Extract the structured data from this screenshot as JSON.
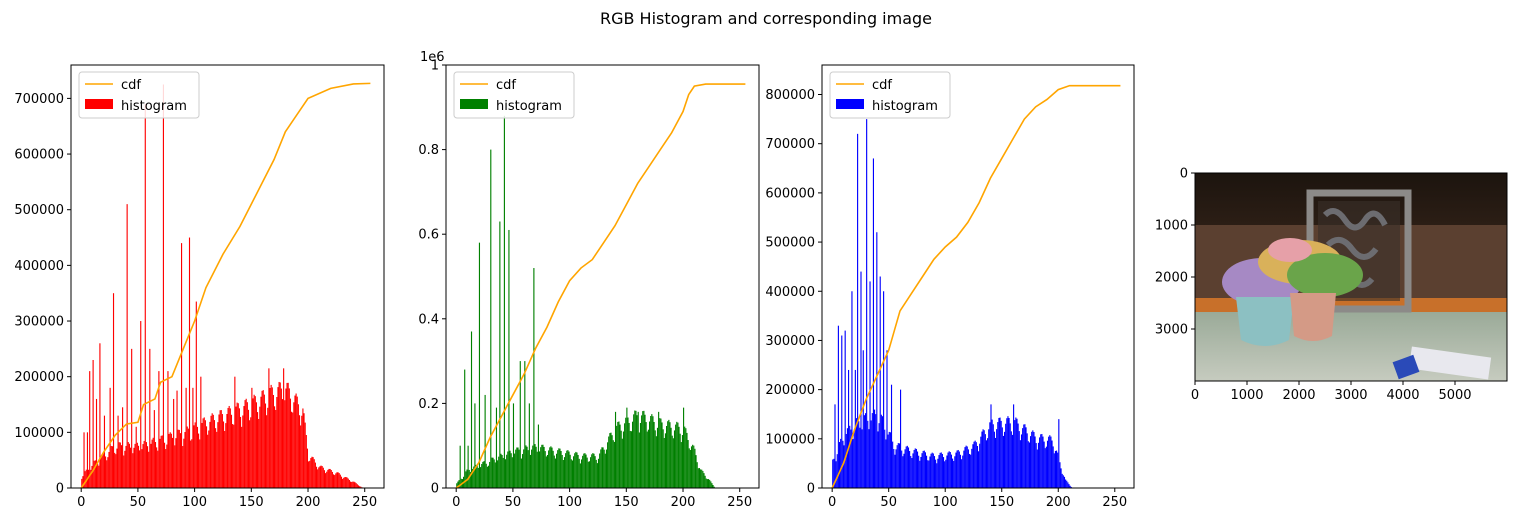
{
  "figure": {
    "suptitle": "RGB Histogram and corresponding image"
  },
  "chart_data": [
    {
      "type": "bar",
      "channel": "red",
      "color": "#ff0000",
      "cdf_color": "#ffa500",
      "legend": [
        "cdf",
        "histogram"
      ],
      "legend_position": "upper-left",
      "xlim": [
        -9,
        267
      ],
      "ylim": [
        0,
        760000
      ],
      "xticks": [
        0,
        50,
        100,
        150,
        200,
        250
      ],
      "yticks": [
        0,
        100000,
        200000,
        300000,
        400000,
        500000,
        600000,
        700000
      ],
      "y_offset_label": "",
      "hist_profile": [
        [
          0,
          20000
        ],
        [
          10,
          40000
        ],
        [
          30,
          70000
        ],
        [
          50,
          70000
        ],
        [
          70,
          80000
        ],
        [
          95,
          95000
        ],
        [
          110,
          110000
        ],
        [
          130,
          125000
        ],
        [
          150,
          140000
        ],
        [
          170,
          160000
        ],
        [
          180,
          165000
        ],
        [
          195,
          130000
        ],
        [
          200,
          55000
        ],
        [
          210,
          35000
        ],
        [
          225,
          25000
        ],
        [
          240,
          10000
        ],
        [
          248,
          0
        ],
        [
          255,
          0
        ]
      ],
      "hist_spikes": [
        [
          2,
          100000
        ],
        [
          5,
          100000
        ],
        [
          7,
          210000
        ],
        [
          10,
          230000
        ],
        [
          13,
          160000
        ],
        [
          16,
          260000
        ],
        [
          20,
          130000
        ],
        [
          25,
          180000
        ],
        [
          28,
          350000
        ],
        [
          32,
          130000
        ],
        [
          36,
          145000
        ],
        [
          40,
          510000
        ],
        [
          44,
          250000
        ],
        [
          48,
          110000
        ],
        [
          52,
          300000
        ],
        [
          56,
          690000
        ],
        [
          60,
          250000
        ],
        [
          64,
          140000
        ],
        [
          68,
          210000
        ],
        [
          72,
          725000
        ],
        [
          76,
          210000
        ],
        [
          81,
          160000
        ],
        [
          84,
          175000
        ],
        [
          88,
          440000
        ],
        [
          92,
          180000
        ],
        [
          95,
          450000
        ],
        [
          98,
          180000
        ],
        [
          101,
          335000
        ],
        [
          105,
          200000
        ],
        [
          135,
          200000
        ],
        [
          150,
          180000
        ],
        [
          165,
          215000
        ],
        [
          178,
          215000
        ]
      ],
      "cdf": [
        [
          0,
          0
        ],
        [
          10,
          30000
        ],
        [
          20,
          65000
        ],
        [
          30,
          95000
        ],
        [
          40,
          115000
        ],
        [
          50,
          118000
        ],
        [
          55,
          150000
        ],
        [
          65,
          160000
        ],
        [
          70,
          190000
        ],
        [
          80,
          200000
        ],
        [
          90,
          250000
        ],
        [
          100,
          300000
        ],
        [
          110,
          360000
        ],
        [
          125,
          420000
        ],
        [
          140,
          470000
        ],
        [
          150,
          510000
        ],
        [
          160,
          550000
        ],
        [
          170,
          590000
        ],
        [
          180,
          640000
        ],
        [
          190,
          670000
        ],
        [
          200,
          700000
        ],
        [
          220,
          718000
        ],
        [
          240,
          726000
        ],
        [
          255,
          727000
        ]
      ]
    },
    {
      "type": "bar",
      "channel": "green",
      "color": "#008000",
      "cdf_color": "#ffa500",
      "legend": [
        "cdf",
        "histogram"
      ],
      "legend_position": "upper-left",
      "xlim": [
        -9,
        267
      ],
      "ylim": [
        0,
        1.0
      ],
      "xticks": [
        0,
        50,
        100,
        150,
        200,
        250
      ],
      "yticks": [
        0,
        0.2,
        0.4,
        0.6,
        0.8,
        1.0
      ],
      "y_offset_label": "1e6",
      "hist_profile": [
        [
          0,
          0.01
        ],
        [
          10,
          0.04
        ],
        [
          30,
          0.06
        ],
        [
          50,
          0.08
        ],
        [
          70,
          0.09
        ],
        [
          90,
          0.08
        ],
        [
          110,
          0.07
        ],
        [
          125,
          0.07
        ],
        [
          140,
          0.13
        ],
        [
          160,
          0.16
        ],
        [
          180,
          0.14
        ],
        [
          200,
          0.13
        ],
        [
          210,
          0.08
        ],
        [
          215,
          0.04
        ],
        [
          222,
          0.02
        ],
        [
          228,
          0
        ],
        [
          255,
          0
        ]
      ],
      "hist_spikes": [
        [
          3,
          0.1
        ],
        [
          7,
          0.28
        ],
        [
          10,
          0.1
        ],
        [
          13,
          0.37
        ],
        [
          16,
          0.2
        ],
        [
          20,
          0.58
        ],
        [
          25,
          0.22
        ],
        [
          30,
          0.8
        ],
        [
          35,
          0.19
        ],
        [
          38,
          0.63
        ],
        [
          42,
          0.88
        ],
        [
          46,
          0.61
        ],
        [
          50,
          0.2
        ],
        [
          56,
          0.3
        ],
        [
          60,
          0.3
        ],
        [
          64,
          0.2
        ],
        [
          68,
          0.52
        ],
        [
          72,
          0.15
        ],
        [
          140,
          0.18
        ],
        [
          150,
          0.19
        ],
        [
          160,
          0.18
        ],
        [
          178,
          0.18
        ],
        [
          200,
          0.19
        ]
      ],
      "cdf": [
        [
          0,
          0
        ],
        [
          10,
          0.02
        ],
        [
          20,
          0.06
        ],
        [
          30,
          0.12
        ],
        [
          40,
          0.17
        ],
        [
          50,
          0.22
        ],
        [
          60,
          0.27
        ],
        [
          70,
          0.33
        ],
        [
          80,
          0.38
        ],
        [
          90,
          0.44
        ],
        [
          100,
          0.49
        ],
        [
          110,
          0.52
        ],
        [
          120,
          0.54
        ],
        [
          130,
          0.58
        ],
        [
          140,
          0.62
        ],
        [
          150,
          0.67
        ],
        [
          160,
          0.72
        ],
        [
          170,
          0.76
        ],
        [
          180,
          0.8
        ],
        [
          190,
          0.84
        ],
        [
          200,
          0.89
        ],
        [
          205,
          0.93
        ],
        [
          210,
          0.95
        ],
        [
          220,
          0.955
        ],
        [
          255,
          0.955
        ]
      ]
    },
    {
      "type": "bar",
      "channel": "blue",
      "color": "#0000ff",
      "cdf_color": "#ffa500",
      "legend": [
        "cdf",
        "histogram"
      ],
      "legend_position": "upper-left",
      "xlim": [
        -9,
        267
      ],
      "ylim": [
        0,
        860000
      ],
      "xticks": [
        0,
        50,
        100,
        150,
        200,
        250
      ],
      "yticks": [
        0,
        100000,
        200000,
        300000,
        400000,
        500000,
        600000,
        700000,
        800000
      ],
      "y_offset_label": "",
      "hist_profile": [
        [
          0,
          50000
        ],
        [
          10,
          100000
        ],
        [
          20,
          120000
        ],
        [
          40,
          140000
        ],
        [
          55,
          80000
        ],
        [
          70,
          70000
        ],
        [
          90,
          60000
        ],
        [
          110,
          65000
        ],
        [
          125,
          80000
        ],
        [
          140,
          120000
        ],
        [
          160,
          125000
        ],
        [
          180,
          95000
        ],
        [
          195,
          90000
        ],
        [
          202,
          40000
        ],
        [
          206,
          15000
        ],
        [
          212,
          0
        ],
        [
          255,
          0
        ]
      ],
      "hist_spikes": [
        [
          2,
          170000
        ],
        [
          5,
          330000
        ],
        [
          8,
          310000
        ],
        [
          11,
          320000
        ],
        [
          14,
          240000
        ],
        [
          17,
          400000
        ],
        [
          20,
          240000
        ],
        [
          22,
          720000
        ],
        [
          25,
          440000
        ],
        [
          27,
          280000
        ],
        [
          30,
          750000
        ],
        [
          33,
          420000
        ],
        [
          36,
          670000
        ],
        [
          39,
          520000
        ],
        [
          42,
          430000
        ],
        [
          45,
          400000
        ],
        [
          48,
          280000
        ],
        [
          52,
          210000
        ],
        [
          60,
          200000
        ],
        [
          140,
          170000
        ],
        [
          160,
          170000
        ],
        [
          200,
          140000
        ]
      ],
      "cdf": [
        [
          0,
          0
        ],
        [
          10,
          50000
        ],
        [
          20,
          120000
        ],
        [
          30,
          180000
        ],
        [
          40,
          230000
        ],
        [
          50,
          280000
        ],
        [
          60,
          360000
        ],
        [
          70,
          395000
        ],
        [
          80,
          430000
        ],
        [
          90,
          465000
        ],
        [
          100,
          490000
        ],
        [
          110,
          510000
        ],
        [
          120,
          540000
        ],
        [
          130,
          580000
        ],
        [
          140,
          630000
        ],
        [
          150,
          670000
        ],
        [
          160,
          710000
        ],
        [
          170,
          750000
        ],
        [
          180,
          775000
        ],
        [
          190,
          790000
        ],
        [
          200,
          810000
        ],
        [
          210,
          818000
        ],
        [
          255,
          818000
        ]
      ]
    },
    {
      "type": "image",
      "xlim": [
        0,
        6000
      ],
      "ylim": [
        4000,
        0
      ],
      "xticks": [
        0,
        1000,
        2000,
        3000,
        4000,
        5000
      ],
      "yticks": [
        0,
        1000,
        2000,
        3000
      ]
    }
  ]
}
